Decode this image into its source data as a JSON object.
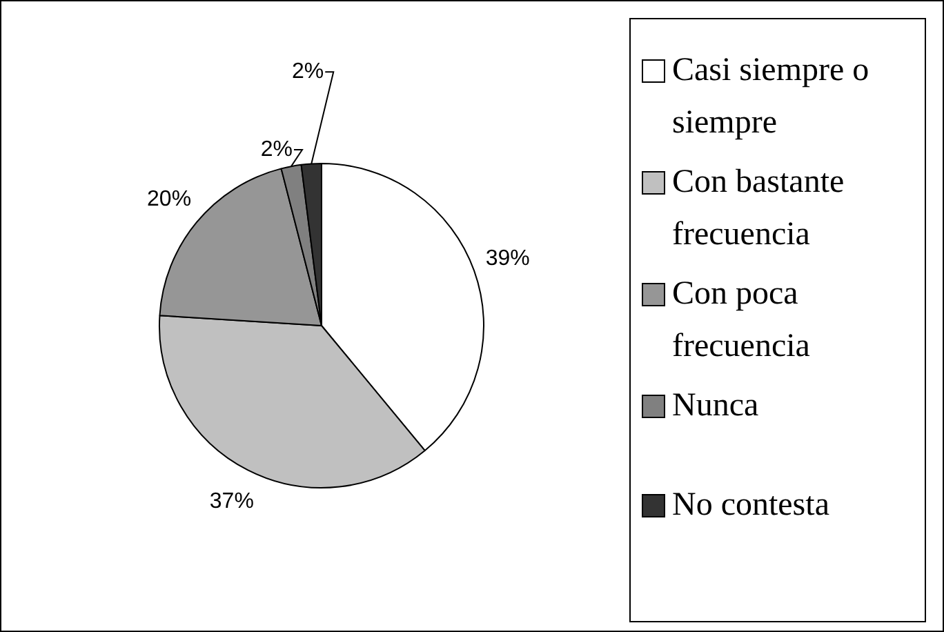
{
  "chart_data": {
    "type": "pie",
    "categories": [
      "Casi siempre o siempre",
      "Con bastante frecuencia",
      "Con poca frecuencia",
      "Nunca",
      "No contesta"
    ],
    "values": [
      39,
      37,
      20,
      2,
      2
    ],
    "colors": [
      "#ffffff",
      "#c0c0c0",
      "#969696",
      "#808080",
      "#333333"
    ],
    "value_labels": [
      "39%",
      "37%",
      "20%",
      "2%",
      "2%"
    ],
    "legend": "right"
  }
}
